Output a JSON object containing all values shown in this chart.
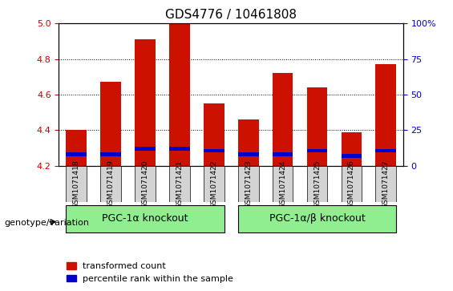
{
  "title": "GDS4776 / 10461808",
  "samples": [
    "GSM1071418",
    "GSM1071419",
    "GSM1071420",
    "GSM1071421",
    "GSM1071422",
    "GSM1071423",
    "GSM1071424",
    "GSM1071425",
    "GSM1071426",
    "GSM1071427"
  ],
  "red_values": [
    4.4,
    4.67,
    4.91,
    5.0,
    4.55,
    4.46,
    4.72,
    4.64,
    4.39,
    4.77
  ],
  "blue_values": [
    4.265,
    4.265,
    4.295,
    4.295,
    4.285,
    4.265,
    4.265,
    4.285,
    4.255,
    4.285
  ],
  "ymin": 4.2,
  "ymax": 5.0,
  "yticks_left": [
    4.2,
    4.4,
    4.6,
    4.8,
    5.0
  ],
  "yticks_right": [
    0,
    25,
    50,
    75,
    100
  ],
  "ylabel_left_color": "#cc0000",
  "ylabel_right_color": "#0000cc",
  "bar_color_red": "#cc1100",
  "bar_color_blue": "#0000cc",
  "bar_base": 4.2,
  "groups": [
    {
      "label": "PGC-1α knockout",
      "start": 0,
      "end": 4,
      "color": "#90ee90"
    },
    {
      "label": "PGC-1α/β knockout",
      "start": 5,
      "end": 9,
      "color": "#90ee90"
    }
  ],
  "group_label_left": "genotype/variation",
  "legend_items": [
    {
      "color": "#cc1100",
      "label": "transformed count"
    },
    {
      "color": "#0000cc",
      "label": "percentile rank within the sample"
    }
  ],
  "grid_color": "black",
  "bar_width": 0.6,
  "bg_color": "#ffffff",
  "title_fontsize": 11,
  "group_fontsize": 9,
  "legend_fontsize": 8
}
